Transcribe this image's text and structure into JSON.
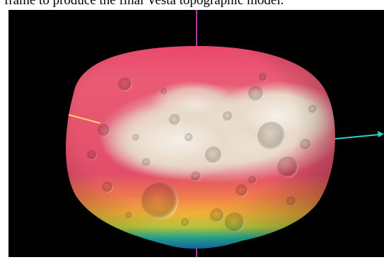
{
  "caption": {
    "text": "frame to produce the final Vesta topographic model."
  },
  "scene": {
    "subject": "Vesta",
    "axes": [
      "vertical-axis",
      "horizontal-axis",
      "oblique-axis"
    ],
    "colors": {
      "background": "#000000",
      "axis_vertical": "#b03a9a",
      "axis_horizontal": "#2fd0c8",
      "axis_oblique": "#ffd36a",
      "elevation_high": "#f4efe6",
      "elevation_mid": "#e4506c",
      "elevation_low": "#2a4dd8"
    }
  }
}
